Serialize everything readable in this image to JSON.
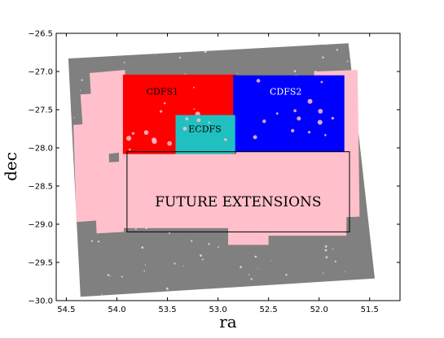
{
  "chart_data": {
    "type": "scatter",
    "xlabel": "ra",
    "ylabel": "dec",
    "x_inverted": true,
    "xlim": [
      54.6,
      51.2
    ],
    "ylim": [
      -30.0,
      -26.5
    ],
    "xticks": [
      {
        "value": 54.5,
        "label": "54.5"
      },
      {
        "value": 54.0,
        "label": "54.0"
      },
      {
        "value": 53.5,
        "label": "53.5"
      },
      {
        "value": 53.0,
        "label": "53.0"
      },
      {
        "value": 52.5,
        "label": "52.5"
      },
      {
        "value": 52.0,
        "label": "52.0"
      },
      {
        "value": 51.5,
        "label": "51.5"
      }
    ],
    "yticks": [
      {
        "value": -26.5,
        "label": "−26.5"
      },
      {
        "value": -27.0,
        "label": "−27.0"
      },
      {
        "value": -27.5,
        "label": "−27.5"
      },
      {
        "value": -28.0,
        "label": "−28.0"
      },
      {
        "value": -28.5,
        "label": "−28.5"
      },
      {
        "value": -29.0,
        "label": "−29.0"
      },
      {
        "value": -29.5,
        "label": "−29.5"
      },
      {
        "value": -30.0,
        "label": "−30.0"
      }
    ],
    "grid": false,
    "legend": "none",
    "footprint": {
      "name": "",
      "color": "#808080",
      "corners": [
        [
          54.48,
          -26.83
        ],
        [
          51.71,
          -26.63
        ],
        [
          51.45,
          -29.71
        ],
        [
          54.36,
          -29.95
        ]
      ]
    },
    "extension_tiles": {
      "color": "#ffc0cb",
      "polygons": [
        [
          [
            54.27,
            -27.02
          ],
          [
            53.92,
            -26.98
          ],
          [
            53.9,
            -28.05
          ],
          [
            54.22,
            -28.1
          ]
        ],
        [
          [
            54.36,
            -27.3
          ],
          [
            54.1,
            -27.28
          ],
          [
            54.07,
            -28.45
          ],
          [
            54.3,
            -28.47
          ]
        ],
        [
          [
            54.43,
            -27.7
          ],
          [
            54.2,
            -27.68
          ],
          [
            54.18,
            -28.95
          ],
          [
            54.4,
            -28.97
          ]
        ],
        [
          [
            54.23,
            -28.2
          ],
          [
            53.95,
            -28.18
          ],
          [
            53.93,
            -29.1
          ],
          [
            54.2,
            -29.12
          ]
        ],
        [
          [
            53.98,
            -28.05
          ],
          [
            52.82,
            -28.05
          ],
          [
            52.82,
            -29.05
          ],
          [
            53.98,
            -29.05
          ]
        ],
        [
          [
            52.88,
            -28.05
          ],
          [
            51.73,
            -28.05
          ],
          [
            51.73,
            -29.15
          ],
          [
            52.88,
            -29.15
          ]
        ],
        [
          [
            52.05,
            -27.0
          ],
          [
            51.62,
            -26.98
          ],
          [
            51.6,
            -28.9
          ],
          [
            52.0,
            -28.92
          ]
        ],
        [
          [
            52.9,
            -28.2
          ],
          [
            52.5,
            -28.2
          ],
          [
            52.5,
            -29.27
          ],
          [
            52.9,
            -29.27
          ]
        ]
      ]
    },
    "regions": [
      {
        "label": "CDFS1",
        "color": "#ff0000",
        "ra_range": [
          53.94,
          52.82
        ],
        "dec_range": [
          -27.04,
          -28.08
        ],
        "label_at": [
          53.55,
          -27.27
        ],
        "label_color": "#000000"
      },
      {
        "label": "CDFS2",
        "color": "#0000ff",
        "ra_range": [
          52.85,
          51.75
        ],
        "dec_range": [
          -27.05,
          -28.05
        ],
        "label_at": [
          52.33,
          -27.27
        ],
        "label_color": "#ffffff"
      },
      {
        "label": "ECDFS",
        "color": "#20c0c0",
        "ra_range": [
          53.42,
          52.83
        ],
        "dec_range": [
          -27.57,
          -28.08
        ],
        "label_at": [
          53.13,
          -27.76
        ],
        "label_color": "#000000"
      }
    ],
    "outline_box": {
      "label": "FUTURE EXTENSIONS",
      "ra_range": [
        53.9,
        51.7
      ],
      "dec_range": [
        -28.05,
        -29.1
      ],
      "label_at": [
        52.8,
        -28.72
      ]
    }
  }
}
